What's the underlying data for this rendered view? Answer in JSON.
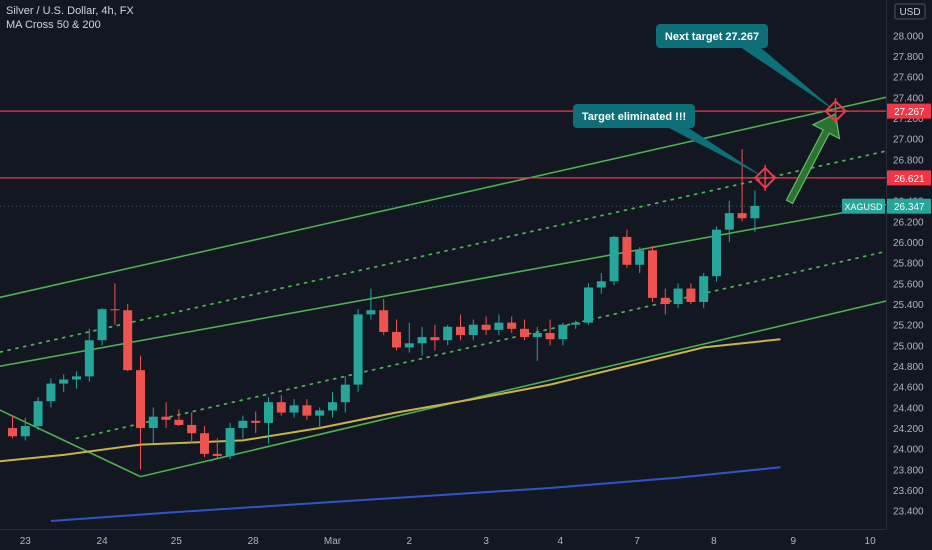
{
  "header": {
    "symbol_line": "Silver / U.S. Dollar, 4h, FX",
    "indicator_line": "MA Cross 50 & 200"
  },
  "currency": "USD",
  "colors": {
    "background": "#131722",
    "up": "#26a69a",
    "down": "#ef5350",
    "channel": "#4caf50",
    "ma50": "#c8b34a",
    "ma200": "#2f54c8",
    "hline": "#f23645",
    "callout": "#0e6f78",
    "arrow": "#2e7d32",
    "axis_text": "#b2b5be"
  },
  "icons": [
    "target-crosshair-icon",
    "target-crosshair-icon"
  ],
  "chart_data": {
    "type": "candlestick",
    "y_axis": {
      "ticks": [
        "28.000",
        "27.800",
        "27.600",
        "27.400",
        "27.200",
        "27.000",
        "26.800",
        "26.600",
        "26.400",
        "26.200",
        "26.000",
        "25.800",
        "25.600",
        "25.400",
        "25.200",
        "25.000",
        "24.800",
        "24.600",
        "24.400",
        "24.200",
        "24.000",
        "23.800",
        "23.600",
        "23.400"
      ],
      "ylim": [
        23.31,
        28.12
      ]
    },
    "x_axis": {
      "ticks": [
        {
          "label": "23",
          "bar": 1
        },
        {
          "label": "24",
          "bar": 7
        },
        {
          "label": "25",
          "bar": 12.8
        },
        {
          "label": "28",
          "bar": 18.8
        },
        {
          "label": "Mar",
          "bar": 25
        },
        {
          "label": "2",
          "bar": 31
        },
        {
          "label": "3",
          "bar": 37
        },
        {
          "label": "4",
          "bar": 42.8
        },
        {
          "label": "7",
          "bar": 48.8
        },
        {
          "label": "8",
          "bar": 54.8
        },
        {
          "label": "9",
          "bar": 61
        },
        {
          "label": "10",
          "bar": 67
        }
      ]
    },
    "candles": [
      {
        "o": 24.2,
        "h": 24.32,
        "l": 24.1,
        "c": 24.12
      },
      {
        "o": 24.12,
        "h": 24.3,
        "l": 24.08,
        "c": 24.22
      },
      {
        "o": 24.22,
        "h": 24.5,
        "l": 24.18,
        "c": 24.46
      },
      {
        "o": 24.46,
        "h": 24.68,
        "l": 24.4,
        "c": 24.63
      },
      {
        "o": 24.63,
        "h": 24.72,
        "l": 24.55,
        "c": 24.67
      },
      {
        "o": 24.67,
        "h": 24.75,
        "l": 24.58,
        "c": 24.7
      },
      {
        "o": 24.7,
        "h": 25.16,
        "l": 24.65,
        "c": 25.05
      },
      {
        "o": 25.05,
        "h": 25.36,
        "l": 25.0,
        "c": 25.35
      },
      {
        "o": 25.35,
        "h": 25.6,
        "l": 25.2,
        "c": 25.34
      },
      {
        "o": 25.34,
        "h": 25.4,
        "l": 24.75,
        "c": 24.76
      },
      {
        "o": 24.76,
        "h": 24.9,
        "l": 23.8,
        "c": 24.2
      },
      {
        "o": 24.2,
        "h": 24.4,
        "l": 24.05,
        "c": 24.31
      },
      {
        "o": 24.31,
        "h": 24.45,
        "l": 24.2,
        "c": 24.28
      },
      {
        "o": 24.28,
        "h": 24.38,
        "l": 24.22,
        "c": 24.23
      },
      {
        "o": 24.23,
        "h": 24.35,
        "l": 24.05,
        "c": 24.15
      },
      {
        "o": 24.15,
        "h": 24.22,
        "l": 23.92,
        "c": 23.95
      },
      {
        "o": 23.95,
        "h": 24.1,
        "l": 23.9,
        "c": 23.93
      },
      {
        "o": 23.93,
        "h": 24.25,
        "l": 23.9,
        "c": 24.2
      },
      {
        "o": 24.2,
        "h": 24.32,
        "l": 24.1,
        "c": 24.27
      },
      {
        "o": 24.27,
        "h": 24.36,
        "l": 24.15,
        "c": 24.25
      },
      {
        "o": 24.25,
        "h": 24.5,
        "l": 24.05,
        "c": 24.45
      },
      {
        "o": 24.45,
        "h": 24.52,
        "l": 24.32,
        "c": 24.35
      },
      {
        "o": 24.35,
        "h": 24.48,
        "l": 24.3,
        "c": 24.42
      },
      {
        "o": 24.42,
        "h": 24.48,
        "l": 24.28,
        "c": 24.32
      },
      {
        "o": 24.32,
        "h": 24.4,
        "l": 24.2,
        "c": 24.37
      },
      {
        "o": 24.37,
        "h": 24.55,
        "l": 24.3,
        "c": 24.45
      },
      {
        "o": 24.45,
        "h": 24.7,
        "l": 24.35,
        "c": 24.62
      },
      {
        "o": 24.62,
        "h": 25.35,
        "l": 24.55,
        "c": 25.3
      },
      {
        "o": 25.3,
        "h": 25.55,
        "l": 25.25,
        "c": 25.34
      },
      {
        "o": 25.34,
        "h": 25.45,
        "l": 25.1,
        "c": 25.13
      },
      {
        "o": 25.13,
        "h": 25.25,
        "l": 24.95,
        "c": 24.98
      },
      {
        "o": 24.98,
        "h": 25.22,
        "l": 24.93,
        "c": 25.02
      },
      {
        "o": 25.02,
        "h": 25.18,
        "l": 24.9,
        "c": 25.08
      },
      {
        "o": 25.08,
        "h": 25.2,
        "l": 24.95,
        "c": 25.05
      },
      {
        "o": 25.05,
        "h": 25.2,
        "l": 25.0,
        "c": 25.18
      },
      {
        "o": 25.18,
        "h": 25.3,
        "l": 25.05,
        "c": 25.1
      },
      {
        "o": 25.1,
        "h": 25.25,
        "l": 25.05,
        "c": 25.2
      },
      {
        "o": 25.2,
        "h": 25.28,
        "l": 25.1,
        "c": 25.15
      },
      {
        "o": 25.15,
        "h": 25.3,
        "l": 25.1,
        "c": 25.22
      },
      {
        "o": 25.22,
        "h": 25.28,
        "l": 25.12,
        "c": 25.16
      },
      {
        "o": 25.16,
        "h": 25.25,
        "l": 25.05,
        "c": 25.08
      },
      {
        "o": 25.08,
        "h": 25.18,
        "l": 24.85,
        "c": 25.12
      },
      {
        "o": 25.12,
        "h": 25.25,
        "l": 25.0,
        "c": 25.06
      },
      {
        "o": 25.06,
        "h": 25.22,
        "l": 25.0,
        "c": 25.2
      },
      {
        "o": 25.2,
        "h": 25.24,
        "l": 25.16,
        "c": 25.22
      },
      {
        "o": 25.22,
        "h": 25.6,
        "l": 25.2,
        "c": 25.56
      },
      {
        "o": 25.56,
        "h": 25.7,
        "l": 25.5,
        "c": 25.62
      },
      {
        "o": 25.62,
        "h": 26.06,
        "l": 25.58,
        "c": 26.05
      },
      {
        "o": 26.05,
        "h": 26.12,
        "l": 25.75,
        "c": 25.78
      },
      {
        "o": 25.78,
        "h": 25.95,
        "l": 25.7,
        "c": 25.92
      },
      {
        "o": 25.92,
        "h": 25.96,
        "l": 25.42,
        "c": 25.46
      },
      {
        "o": 25.46,
        "h": 25.55,
        "l": 25.3,
        "c": 25.4
      },
      {
        "o": 25.4,
        "h": 25.6,
        "l": 25.36,
        "c": 25.55
      },
      {
        "o": 25.55,
        "h": 25.6,
        "l": 25.4,
        "c": 25.42
      },
      {
        "o": 25.42,
        "h": 25.7,
        "l": 25.36,
        "c": 25.67
      },
      {
        "o": 25.67,
        "h": 26.15,
        "l": 25.62,
        "c": 26.12
      },
      {
        "o": 26.12,
        "h": 26.4,
        "l": 26.0,
        "c": 26.28
      },
      {
        "o": 26.28,
        "h": 26.9,
        "l": 26.2,
        "c": 26.23
      },
      {
        "o": 26.23,
        "h": 26.5,
        "l": 26.1,
        "c": 26.35
      }
    ],
    "moving_averages": [
      {
        "name": "MA 50",
        "points": [
          [
            -4,
            23.84
          ],
          [
            4,
            23.94
          ],
          [
            10,
            24.04
          ],
          [
            18,
            24.08
          ],
          [
            24,
            24.2
          ],
          [
            30,
            24.35
          ],
          [
            36,
            24.48
          ],
          [
            42,
            24.62
          ],
          [
            48,
            24.8
          ],
          [
            54,
            24.98
          ],
          [
            60,
            25.06
          ]
        ]
      },
      {
        "name": "MA 200",
        "points": [
          [
            3,
            23.3
          ],
          [
            12,
            23.38
          ],
          [
            22,
            23.46
          ],
          [
            32,
            23.54
          ],
          [
            42,
            23.62
          ],
          [
            52,
            23.72
          ],
          [
            60,
            23.82
          ]
        ]
      }
    ],
    "channels": [
      {
        "style": "solid",
        "points": [
          [
            -4,
            25.38
          ],
          [
            70,
            27.45
          ]
        ]
      },
      {
        "style": "dotted",
        "points": [
          [
            -4,
            24.85
          ],
          [
            70,
            26.93
          ]
        ]
      },
      {
        "style": "solid",
        "points": [
          [
            -4,
            24.73
          ],
          [
            70,
            26.4
          ]
        ]
      },
      {
        "style": "dotted",
        "points": [
          [
            5,
            24.1
          ],
          [
            70,
            25.96
          ]
        ]
      },
      {
        "style": "solid",
        "points": [
          [
            10,
            23.73
          ],
          [
            70,
            25.48
          ]
        ]
      },
      {
        "style": "solid",
        "points": [
          [
            -4,
            24.55
          ],
          [
            10,
            23.73
          ]
        ]
      }
    ],
    "horizontal_lines": [
      {
        "value": 27.267,
        "label": "27.267"
      },
      {
        "value": 26.621,
        "label": "26.621"
      }
    ],
    "last_price": {
      "symbol": "XAGUSD",
      "value": 26.347,
      "label": "26.347"
    },
    "annotations": [
      {
        "text": "Target eliminated !!!",
        "anchor": [
          58.8,
          26.621
        ]
      },
      {
        "text": "Next target 27.267",
        "anchor": [
          64.3,
          27.267
        ]
      }
    ],
    "markers": [
      {
        "bar": 58.8,
        "value": 26.621
      },
      {
        "bar": 64.3,
        "value": 27.267
      }
    ],
    "arrow": {
      "from": [
        60.7,
        26.39
      ],
      "to": [
        64.3,
        27.24
      ]
    }
  }
}
